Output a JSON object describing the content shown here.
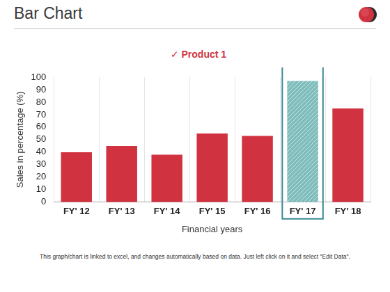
{
  "chart_data": {
    "type": "bar",
    "title": "Bar Chart",
    "subtitle": "✓ Product 1",
    "x_label": "Financial years",
    "y_label": "Sales in percentage (%)",
    "categories": [
      "FY' 12",
      "FY' 13",
      "FY' 14",
      "FY' 15",
      "FY' 16",
      "FY' 17",
      "FY' 18"
    ],
    "values": [
      40,
      45,
      38,
      55,
      53,
      97,
      75
    ],
    "colors": [
      "#d0323f",
      "#d0323f",
      "#d0323f",
      "#d0323f",
      "#d0323f",
      "#7fbcbc",
      "#d0323f"
    ],
    "ylim": [
      0,
      100
    ],
    "yticks": [
      0,
      10,
      20,
      30,
      40,
      50,
      60,
      70,
      80,
      90,
      100
    ],
    "grid": true,
    "annotations": [
      "This graph/chart is linked to excel, and changes automatically based on data. Just left click on it and select \"Edit Data\"."
    ]
  }
}
